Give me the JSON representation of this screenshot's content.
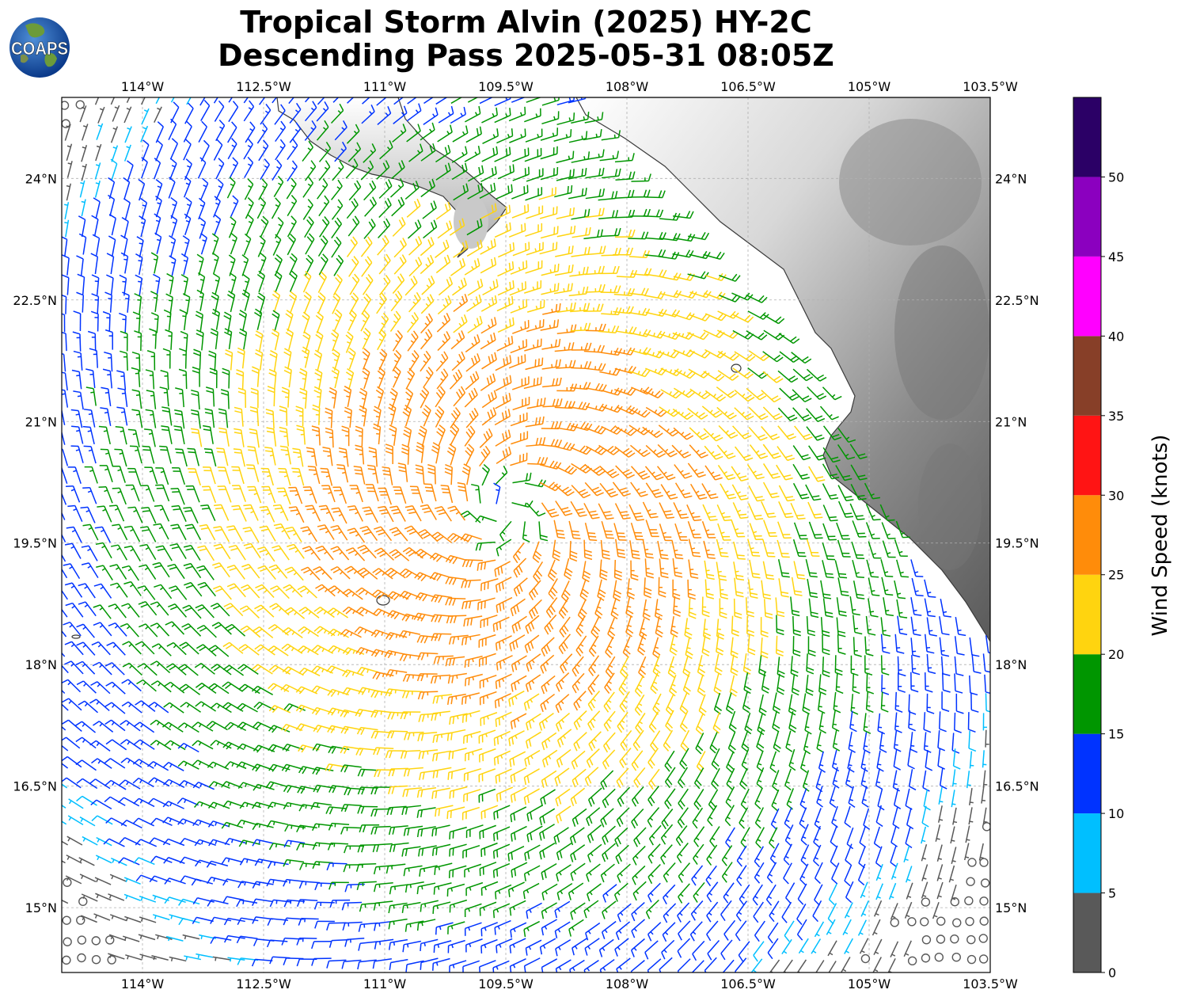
{
  "title": {
    "line1": "Tropical Storm Alvin (2025) HY-2C",
    "line2": "Descending Pass 2025-05-31 08:05Z"
  },
  "logo": {
    "text": "COAPS",
    "icon": "globe-icon"
  },
  "map": {
    "lon_range": [
      -115,
      -103.5
    ],
    "lat_range": [
      14.2,
      25
    ],
    "lon_ticks": [
      "114°W",
      "112.5°W",
      "111°W",
      "109.5°W",
      "108°W",
      "106.5°W",
      "105°W",
      "103.5°W"
    ],
    "lon_tick_values": [
      -114,
      -112.5,
      -111,
      -109.5,
      -108,
      -106.5,
      -105,
      -103.5
    ],
    "lat_ticks": [
      "24°N",
      "22.5°N",
      "21°N",
      "19.5°N",
      "18°N",
      "16.5°N",
      "15°N"
    ],
    "lat_tick_values": [
      24,
      22.5,
      21,
      19.5,
      18,
      16.5,
      15
    ],
    "storm_center": {
      "lon": -109.5,
      "lat": 19.9
    },
    "max_wind_kt": 30,
    "grid": true,
    "land_shading": "grayscale topography"
  },
  "colorbar": {
    "label": "Wind Speed (knots)",
    "tick_labels": [
      "0",
      "5",
      "10",
      "15",
      "20",
      "25",
      "30",
      "35",
      "40",
      "45",
      "50"
    ],
    "bins": [
      {
        "range": [
          0,
          5
        ],
        "color": "#595959"
      },
      {
        "range": [
          5,
          10
        ],
        "color": "#00bfff"
      },
      {
        "range": [
          10,
          15
        ],
        "color": "#0033ff"
      },
      {
        "range": [
          15,
          20
        ],
        "color": "#009600"
      },
      {
        "range": [
          20,
          25
        ],
        "color": "#ffd40f"
      },
      {
        "range": [
          25,
          30
        ],
        "color": "#ff8c0a"
      },
      {
        "range": [
          30,
          35
        ],
        "color": "#ff1414"
      },
      {
        "range": [
          35,
          40
        ],
        "color": "#873f28"
      },
      {
        "range": [
          40,
          45
        ],
        "color": "#ff00ff"
      },
      {
        "range": [
          45,
          50
        ],
        "color": "#8b00bf"
      },
      {
        "range": [
          50,
          55
        ],
        "color": "#2b0066"
      }
    ]
  }
}
